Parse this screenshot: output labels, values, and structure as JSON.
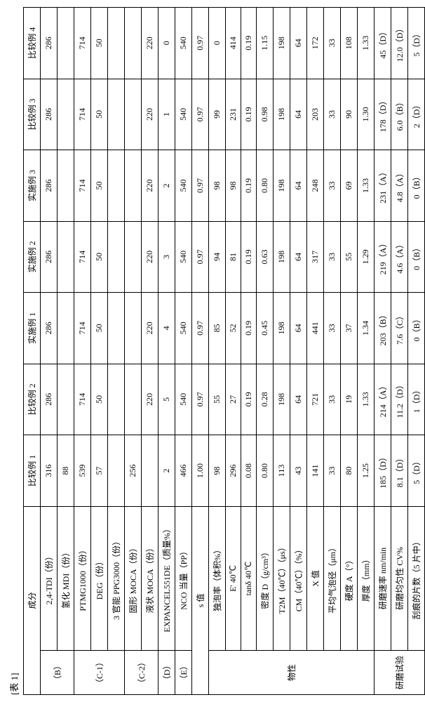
{
  "caption": "[表 1]",
  "headers": {
    "component": "成分",
    "cols": [
      "比较例 1",
      "比较例 2",
      "实施例 1",
      "实施例 2",
      "实施例 3",
      "比较例 3",
      "比较例 4"
    ]
  },
  "groups": {
    "B": "（B）",
    "C1": "（C-1）",
    "C2": "（C-2）",
    "D": "（D）",
    "E": "（E）",
    "props": "物性",
    "test": "研磨试验"
  },
  "rows": {
    "r1": {
      "name": "2,4-TDI（份）",
      "v": [
        "316",
        "286",
        "286",
        "286",
        "286",
        "286",
        "286"
      ]
    },
    "r2": {
      "name": "氢化 MDI（份）",
      "v": [
        "88",
        "",
        "",
        "",
        "",
        "",
        ""
      ]
    },
    "r3": {
      "name": "PTMG1000（份）",
      "v": [
        "539",
        "714",
        "714",
        "714",
        "714",
        "714",
        "714"
      ]
    },
    "r4": {
      "name": "DEG（份）",
      "v": [
        "57",
        "50",
        "50",
        "50",
        "50",
        "50",
        "50"
      ]
    },
    "r5": {
      "name": "3 官能 PPG3000（份）",
      "v": [
        "",
        "",
        "",
        "",
        "",
        "",
        ""
      ]
    },
    "r6": {
      "name": "固形 MOCA（份）",
      "v": [
        "256",
        "",
        "",
        "",
        "",
        "",
        ""
      ]
    },
    "r7": {
      "name": "液状 MOCA（份）",
      "v": [
        "",
        "220",
        "220",
        "220",
        "220",
        "220",
        "220"
      ]
    },
    "r8": {
      "name": "EXPANCEL551DE（质量%）",
      "v": [
        "2",
        "5",
        "4",
        "3",
        "2",
        "1",
        "0"
      ]
    },
    "r9": {
      "name": "NCO 当量（PP）",
      "v": [
        "466",
        "540",
        "540",
        "540",
        "540",
        "540",
        "540"
      ]
    },
    "r10": {
      "name": "s 值",
      "v": [
        "1.00",
        "0.97",
        "0.97",
        "0.97",
        "0.97",
        "0.97",
        "0.97"
      ]
    },
    "r11": {
      "name": "独泡率（体积%）",
      "v": [
        "98",
        "55",
        "85",
        "94",
        "98",
        "99",
        "0"
      ]
    },
    "r12": {
      "name": "E' 40℃",
      "v": [
        "296",
        "27",
        "52",
        "81",
        "98",
        "231",
        "414"
      ]
    },
    "r13": {
      "name": "tanδ 40℃",
      "v": [
        "0.08",
        "0.19",
        "0.19",
        "0.19",
        "0.19",
        "0.19",
        "0.19"
      ]
    },
    "r14": {
      "name": "密度 D（g/cm³）",
      "v": [
        "0.80",
        "0.28",
        "0.45",
        "0.63",
        "0.80",
        "0.98",
        "1.15"
      ]
    },
    "r15": {
      "name": "T2M（40℃）（μs）",
      "v": [
        "113",
        "198",
        "198",
        "198",
        "198",
        "198",
        "198"
      ]
    },
    "r16": {
      "name": "CM（40℃）（%）",
      "v": [
        "43",
        "64",
        "64",
        "64",
        "64",
        "64",
        "64"
      ]
    },
    "r17": {
      "name": "X 值",
      "v": [
        "141",
        "721",
        "441",
        "317",
        "248",
        "203",
        "172"
      ]
    },
    "r18": {
      "name": "平均气泡径（μm）",
      "v": [
        "33",
        "33",
        "33",
        "33",
        "33",
        "33",
        "33"
      ]
    },
    "r19": {
      "name": "硬度 A（°）",
      "v": [
        "80",
        "19",
        "37",
        "55",
        "69",
        "90",
        "108"
      ]
    },
    "r20": {
      "name": "厚度（mm）",
      "v": [
        "1.25",
        "1.33",
        "1.34",
        "1.29",
        "1.33",
        "1.30",
        "1.33"
      ]
    },
    "r21": {
      "name": "研磨速率 nm/min",
      "v": [
        "185（D）",
        "214（A）",
        "203（B）",
        "219（A）",
        "231（A）",
        "178（D）",
        "45（D）"
      ]
    },
    "r22": {
      "name": "研磨均匀性 CV%",
      "v": [
        "8.1（D）",
        "11.2（D）",
        "7.6（C）",
        "4.6（A）",
        "4.8（A）",
        "6.0（B）",
        "12.0（D）"
      ]
    },
    "r23": {
      "name": "刮痕的片数（5 片中）",
      "v": [
        "5（D）",
        "1（D）",
        "0（B）",
        "0（B）",
        "0（B）",
        "2（D）",
        "5（D）"
      ]
    }
  }
}
